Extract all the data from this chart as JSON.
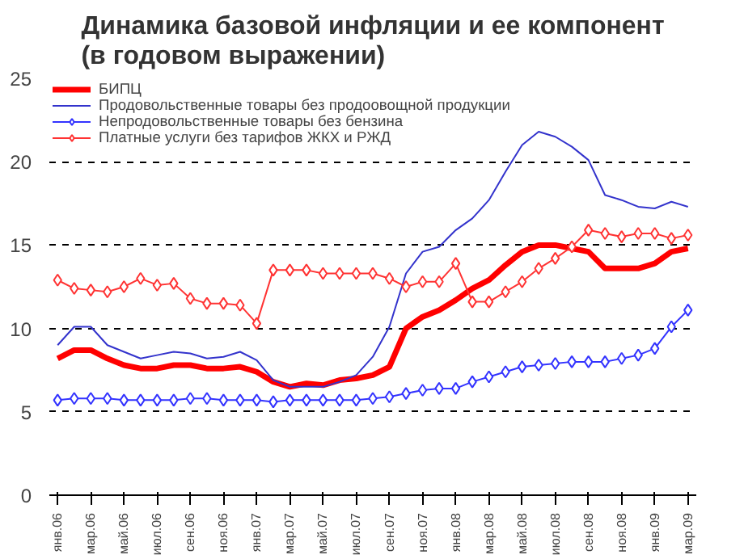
{
  "chart_data": {
    "type": "line",
    "title": "Динамика базовой инфляции и ее компонент\n(в годовом выражении)",
    "categories": [
      "янв.06",
      null,
      "мар.06",
      null,
      "май.06",
      null,
      "июл.06",
      null,
      "сен.06",
      null,
      "ноя.06",
      null,
      "янв.07",
      null,
      "мар.07",
      null,
      "май.07",
      null,
      "июл.07",
      null,
      "сен.07",
      null,
      "ноя.07",
      null,
      "янв.08",
      null,
      "мар.08",
      null,
      "май.08",
      null,
      "июл.08",
      null,
      "сен.08",
      null,
      "ноя.08",
      null,
      "янв.09",
      null,
      "мар.09"
    ],
    "series": [
      {
        "name": "БИПЦ",
        "color": "#ff0000",
        "marker": "none",
        "values": [
          8.2,
          8.7,
          8.7,
          8.2,
          7.8,
          7.6,
          7.6,
          7.8,
          7.8,
          7.6,
          7.6,
          7.7,
          7.4,
          6.8,
          6.5,
          6.7,
          6.6,
          6.9,
          7.0,
          7.2,
          7.7,
          10.0,
          10.7,
          11.1,
          11.7,
          12.4,
          12.9,
          13.8,
          14.6,
          15.0,
          15.0,
          14.8,
          14.6,
          13.6,
          13.6,
          13.6,
          13.9,
          14.6,
          14.8
        ]
      },
      {
        "name": "Продовольственные товары без продоовощной продукции",
        "color": "#3333cc",
        "marker": "none",
        "values": [
          9.0,
          10.1,
          10.1,
          9.0,
          8.6,
          8.2,
          8.4,
          8.6,
          8.5,
          8.2,
          8.3,
          8.6,
          8.1,
          6.9,
          6.5,
          6.5,
          6.5,
          6.8,
          7.2,
          8.3,
          10.1,
          13.3,
          14.6,
          14.9,
          15.9,
          16.6,
          17.7,
          19.4,
          21.0,
          21.8,
          21.5,
          20.9,
          20.1,
          18.0,
          17.7,
          17.3,
          17.2,
          17.6,
          17.3
        ]
      },
      {
        "name": "Непродовольственные товары без бензина",
        "color": "#3333ff",
        "marker": "diamond",
        "values": [
          5.7,
          5.8,
          5.8,
          5.8,
          5.7,
          5.7,
          5.7,
          5.7,
          5.8,
          5.8,
          5.7,
          5.7,
          5.7,
          5.6,
          5.7,
          5.7,
          5.7,
          5.7,
          5.7,
          5.8,
          5.9,
          6.1,
          6.3,
          6.4,
          6.4,
          6.8,
          7.1,
          7.4,
          7.7,
          7.8,
          7.9,
          8.0,
          8.0,
          8.0,
          8.2,
          8.4,
          8.8,
          10.1,
          11.1
        ]
      },
      {
        "name": "Платные услуги без тарифов ЖКХ и РЖД",
        "color": "#ff3333",
        "marker": "diamond",
        "values": [
          12.9,
          12.4,
          12.3,
          12.2,
          12.5,
          13.0,
          12.6,
          12.7,
          11.8,
          11.5,
          11.5,
          11.4,
          10.3,
          13.5,
          13.5,
          13.5,
          13.3,
          13.3,
          13.3,
          13.3,
          13.0,
          12.5,
          12.8,
          12.8,
          13.9,
          11.6,
          11.6,
          12.2,
          12.8,
          13.6,
          14.2,
          14.9,
          15.9,
          15.7,
          15.5,
          15.7,
          15.7,
          15.4,
          15.6
        ]
      }
    ],
    "ylim": [
      0,
      25
    ],
    "yticks": [
      0,
      5,
      10,
      15,
      20,
      25
    ],
    "grid": "y",
    "legend": "top left",
    "line_style": "solid"
  }
}
